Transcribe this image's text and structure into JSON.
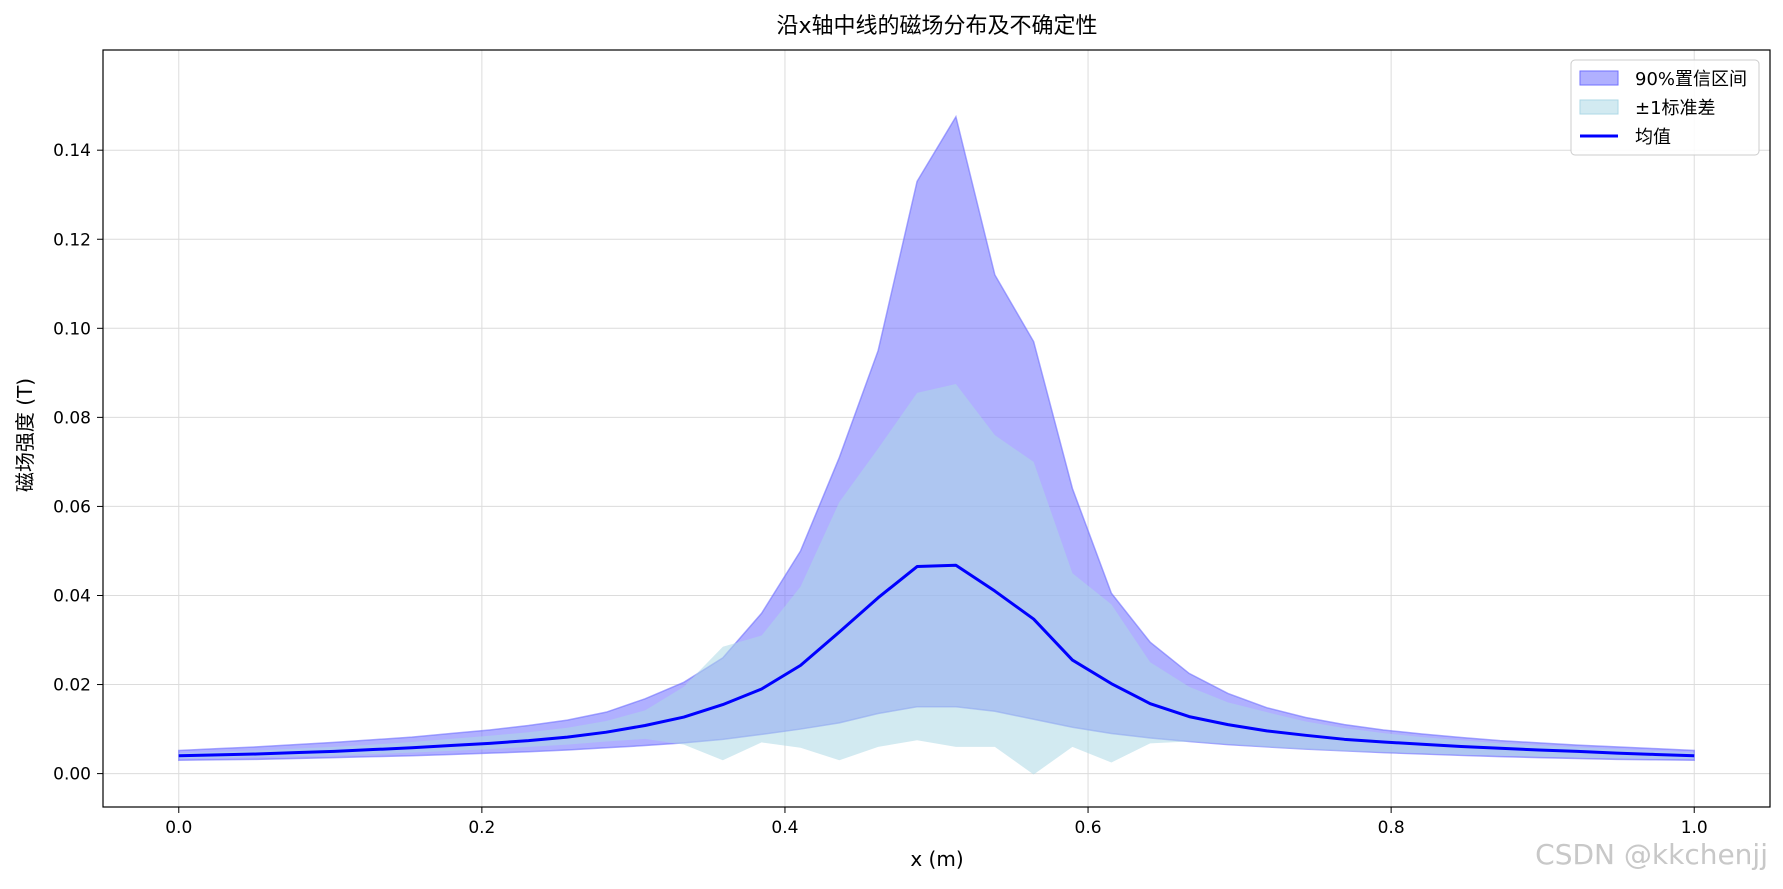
{
  "chart_data": {
    "type": "area",
    "title": "沿x轴中线的磁场分布及不确定性",
    "xlabel": "x (m)",
    "ylabel": "磁场强度 (T)",
    "xlim": [
      -0.05,
      1.05
    ],
    "ylim": [
      -0.0075,
      0.1625
    ],
    "x_ticks": [
      0.0,
      0.2,
      0.4,
      0.6,
      0.8,
      1.0
    ],
    "x_tick_labels": [
      "0.0",
      "0.2",
      "0.4",
      "0.6",
      "0.8",
      "1.0"
    ],
    "y_ticks": [
      0.0,
      0.02,
      0.04,
      0.06,
      0.08,
      0.1,
      0.12,
      0.14
    ],
    "y_tick_labels": [
      "0.00",
      "0.02",
      "0.04",
      "0.06",
      "0.08",
      "0.10",
      "0.12",
      "0.14"
    ],
    "grid": true,
    "legend_position": "top-right",
    "x": [
      0.0,
      0.0256,
      0.0513,
      0.0769,
      0.1026,
      0.1282,
      0.1538,
      0.1795,
      0.2051,
      0.2308,
      0.2564,
      0.2821,
      0.3077,
      0.3333,
      0.359,
      0.3846,
      0.4103,
      0.4359,
      0.4615,
      0.4872,
      0.5128,
      0.5385,
      0.5641,
      0.5897,
      0.6154,
      0.641,
      0.6667,
      0.6923,
      0.7179,
      0.7436,
      0.7692,
      0.7949,
      0.8205,
      0.8462,
      0.8718,
      0.8974,
      0.9231,
      0.9487,
      0.9744,
      1.0
    ],
    "series": [
      {
        "name": "90%置信区间",
        "kind": "band",
        "color": "#7070ff",
        "upper": [
          0.0052,
          0.0056,
          0.006,
          0.0065,
          0.007,
          0.0076,
          0.0082,
          0.009,
          0.0098,
          0.0108,
          0.012,
          0.0138,
          0.0168,
          0.0205,
          0.026,
          0.036,
          0.05,
          0.071,
          0.095,
          0.133,
          0.1475,
          0.112,
          0.097,
          0.064,
          0.0405,
          0.0295,
          0.0225,
          0.018,
          0.0148,
          0.0126,
          0.011,
          0.0098,
          0.0089,
          0.0081,
          0.0074,
          0.0069,
          0.0064,
          0.006,
          0.0056,
          0.0052
        ],
        "lower": [
          0.003,
          0.0031,
          0.0032,
          0.0034,
          0.0036,
          0.0038,
          0.004,
          0.0043,
          0.0046,
          0.0049,
          0.0053,
          0.0058,
          0.0063,
          0.0069,
          0.0077,
          0.0088,
          0.01,
          0.0114,
          0.0135,
          0.015,
          0.015,
          0.014,
          0.0122,
          0.0104,
          0.009,
          0.008,
          0.0072,
          0.0065,
          0.006,
          0.0055,
          0.0051,
          0.0047,
          0.0044,
          0.0041,
          0.0038,
          0.0036,
          0.0034,
          0.0032,
          0.0031,
          0.003
        ]
      },
      {
        "name": "±1标准差",
        "kind": "band",
        "color": "#add8e6",
        "upper": [
          0.0046,
          0.0049,
          0.0052,
          0.0056,
          0.006,
          0.0065,
          0.0071,
          0.0078,
          0.0085,
          0.0093,
          0.0103,
          0.0118,
          0.0142,
          0.0195,
          0.0285,
          0.031,
          0.042,
          0.061,
          0.073,
          0.0855,
          0.0875,
          0.076,
          0.07,
          0.045,
          0.038,
          0.025,
          0.0195,
          0.016,
          0.0138,
          0.0117,
          0.0102,
          0.0091,
          0.0082,
          0.0075,
          0.0068,
          0.0063,
          0.0059,
          0.0055,
          0.0051,
          0.0047
        ],
        "lower": [
          0.0034,
          0.0035,
          0.0037,
          0.0039,
          0.0041,
          0.0044,
          0.0047,
          0.0051,
          0.0055,
          0.006,
          0.0065,
          0.0072,
          0.0078,
          0.0065,
          0.003,
          0.007,
          0.0058,
          0.003,
          0.006,
          0.0075,
          0.006,
          0.006,
          -0.0002,
          0.006,
          0.0025,
          0.0068,
          0.0072,
          0.0066,
          0.006,
          0.0055,
          0.0051,
          0.0048,
          0.0045,
          0.0042,
          0.004,
          0.0038,
          0.0036,
          0.0034,
          0.0033,
          0.0033
        ]
      },
      {
        "name": "均值",
        "kind": "line",
        "color": "#0000ff",
        "values": [
          0.004,
          0.0042,
          0.0044,
          0.0047,
          0.005,
          0.0054,
          0.0058,
          0.0063,
          0.0068,
          0.0074,
          0.0082,
          0.0093,
          0.0108,
          0.0127,
          0.0155,
          0.019,
          0.0243,
          0.0318,
          0.0395,
          0.0465,
          0.0468,
          0.041,
          0.0347,
          0.0255,
          0.0202,
          0.0157,
          0.0128,
          0.011,
          0.0096,
          0.0086,
          0.0077,
          0.0071,
          0.0066,
          0.0061,
          0.0057,
          0.0053,
          0.005,
          0.0046,
          0.0043,
          0.004
        ]
      }
    ]
  },
  "watermark": "CSDN @kkchenjj"
}
